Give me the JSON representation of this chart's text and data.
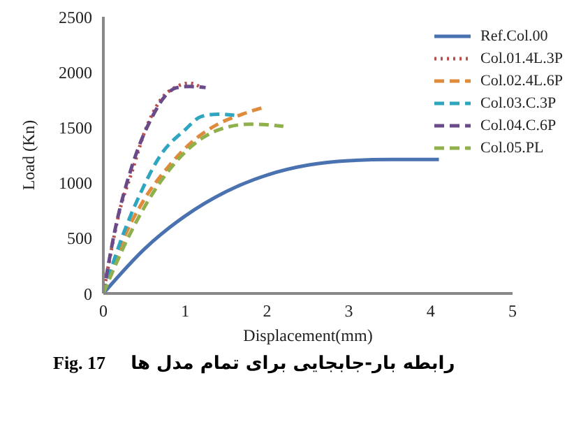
{
  "chart_data": {
    "type": "line",
    "xlabel": "Displacement(mm)",
    "ylabel": "Load (Kn)",
    "xlim": [
      0,
      5
    ],
    "xticks": [
      0,
      1,
      2,
      3,
      4,
      5
    ],
    "ylim": [
      0,
      2500
    ],
    "yticks": [
      0,
      500,
      1000,
      1500,
      2000,
      2500
    ],
    "grid": false,
    "legend": "top right",
    "marker": "none",
    "annotations": [
      "Fig. 17",
      "رابطه بار-جابجایی برای تمام مدل ها"
    ],
    "series": [
      {
        "name": "Ref.Col.00",
        "color": "#4a72b0",
        "line_style": "solid",
        "x": [
          0,
          0.5,
          1,
          1.5,
          2,
          2.5,
          3,
          3.5,
          4.1
        ],
        "values": [
          0,
          400,
          700,
          920,
          1070,
          1160,
          1200,
          1210,
          1210
        ]
      },
      {
        "name": "Col.01.4L.3P",
        "color": "#b5504d",
        "line_style": "dotted",
        "x": [
          0,
          0.1,
          0.2,
          0.35,
          0.5,
          0.7,
          0.9,
          1.05,
          1.2
        ],
        "values": [
          0,
          400,
          750,
          1100,
          1450,
          1750,
          1870,
          1900,
          1860
        ]
      },
      {
        "name": "Col.02.4L.6P",
        "color": "#e08a3c",
        "line_style": "dashed",
        "x": [
          0,
          0.25,
          0.5,
          0.8,
          1.1,
          1.4,
          1.7,
          1.95
        ],
        "values": [
          0,
          500,
          850,
          1150,
          1380,
          1530,
          1620,
          1680
        ]
      },
      {
        "name": "Col.03.C.3P",
        "color": "#2ea6c0",
        "line_style": "dashed",
        "x": [
          0,
          0.2,
          0.45,
          0.7,
          1,
          1.2,
          1.4,
          1.6
        ],
        "values": [
          0,
          450,
          900,
          1250,
          1480,
          1600,
          1620,
          1610
        ]
      },
      {
        "name": "Col.04.C.6P",
        "color": "#6b4a8a",
        "line_style": "dashed",
        "x": [
          0,
          0.15,
          0.35,
          0.6,
          0.75,
          0.9,
          1.05,
          1.25
        ],
        "values": [
          0,
          600,
          1150,
          1600,
          1780,
          1860,
          1870,
          1860
        ]
      },
      {
        "name": "Col.05.PL",
        "color": "#8fb04a",
        "line_style": "dashed",
        "x": [
          0,
          0.3,
          0.6,
          0.9,
          1.2,
          1.5,
          1.8,
          2.2
        ],
        "values": [
          0,
          500,
          900,
          1200,
          1400,
          1500,
          1530,
          1510
        ]
      }
    ]
  }
}
